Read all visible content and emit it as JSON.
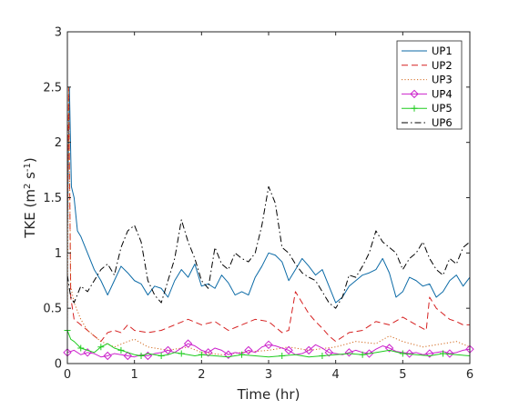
{
  "chart_data": {
    "type": "line",
    "xlabel": "Time (hr)",
    "ylabel": {
      "base": "TKE (m",
      "sup1": "2",
      "mid": " s",
      "sup2": "-1",
      "end": ")"
    },
    "xlim": [
      0,
      6
    ],
    "ylim": [
      0,
      3
    ],
    "xticks": [
      "0",
      "1",
      "2",
      "3",
      "4",
      "5",
      "6"
    ],
    "yticks": [
      "0",
      "0.5",
      "1",
      "1.5",
      "2",
      "2.5",
      "3"
    ],
    "grid": false,
    "legend_position": "top-right",
    "series": [
      {
        "name": "UP1",
        "color": "#0b6aa6",
        "style": "solid",
        "marker": "none",
        "x": [
          0,
          0.03,
          0.06,
          0.1,
          0.15,
          0.2,
          0.3,
          0.4,
          0.5,
          0.6,
          0.7,
          0.8,
          0.9,
          1.0,
          1.1,
          1.2,
          1.3,
          1.4,
          1.5,
          1.6,
          1.7,
          1.8,
          1.9,
          2.0,
          2.1,
          2.2,
          2.3,
          2.4,
          2.5,
          2.6,
          2.7,
          2.8,
          2.9,
          3.0,
          3.1,
          3.2,
          3.3,
          3.4,
          3.5,
          3.6,
          3.7,
          3.8,
          3.9,
          4.0,
          4.1,
          4.2,
          4.3,
          4.4,
          4.5,
          4.6,
          4.7,
          4.8,
          4.9,
          5.0,
          5.1,
          5.2,
          5.3,
          5.4,
          5.5,
          5.6,
          5.7,
          5.8,
          5.9,
          6.0
        ],
        "y": [
          1.2,
          2.5,
          1.6,
          1.5,
          1.2,
          1.15,
          1.0,
          0.85,
          0.75,
          0.62,
          0.75,
          0.88,
          0.82,
          0.75,
          0.72,
          0.62,
          0.7,
          0.68,
          0.6,
          0.75,
          0.85,
          0.78,
          0.9,
          0.7,
          0.72,
          0.68,
          0.8,
          0.73,
          0.62,
          0.65,
          0.62,
          0.78,
          0.88,
          1.0,
          0.98,
          0.92,
          0.75,
          0.85,
          0.95,
          0.88,
          0.8,
          0.85,
          0.7,
          0.55,
          0.6,
          0.7,
          0.75,
          0.8,
          0.82,
          0.85,
          0.95,
          0.82,
          0.6,
          0.65,
          0.78,
          0.75,
          0.7,
          0.72,
          0.6,
          0.65,
          0.75,
          0.8,
          0.7,
          0.78
        ]
      },
      {
        "name": "UP2",
        "color": "#d62020",
        "style": "dashed",
        "marker": "none",
        "x": [
          0,
          0.02,
          0.05,
          0.1,
          0.2,
          0.3,
          0.4,
          0.5,
          0.6,
          0.7,
          0.8,
          0.9,
          1.0,
          1.2,
          1.4,
          1.6,
          1.8,
          2.0,
          2.2,
          2.4,
          2.6,
          2.8,
          3.0,
          3.2,
          3.3,
          3.4,
          3.5,
          3.6,
          3.7,
          3.8,
          3.9,
          4.0,
          4.2,
          4.4,
          4.6,
          4.8,
          5.0,
          5.2,
          5.35,
          5.4,
          5.5,
          5.6,
          5.7,
          5.8,
          5.9,
          6.0
        ],
        "y": [
          1.2,
          2.5,
          0.6,
          0.4,
          0.35,
          0.3,
          0.25,
          0.2,
          0.28,
          0.3,
          0.28,
          0.35,
          0.3,
          0.28,
          0.3,
          0.35,
          0.4,
          0.35,
          0.38,
          0.3,
          0.35,
          0.4,
          0.38,
          0.28,
          0.3,
          0.65,
          0.55,
          0.45,
          0.38,
          0.32,
          0.25,
          0.2,
          0.28,
          0.3,
          0.38,
          0.35,
          0.42,
          0.35,
          0.3,
          0.6,
          0.5,
          0.45,
          0.4,
          0.38,
          0.35,
          0.35
        ]
      },
      {
        "name": "UP3",
        "color": "#d2691e",
        "style": "dotted",
        "marker": "none",
        "x": [
          0,
          0.02,
          0.05,
          0.1,
          0.2,
          0.3,
          0.4,
          0.5,
          0.7,
          0.9,
          1.0,
          1.2,
          1.5,
          1.8,
          2.0,
          2.3,
          2.6,
          3.0,
          3.3,
          3.6,
          4.0,
          4.3,
          4.6,
          4.8,
          5.0,
          5.3,
          5.6,
          5.8,
          6.0
        ],
        "y": [
          0.3,
          2.5,
          0.7,
          0.55,
          0.4,
          0.3,
          0.25,
          0.2,
          0.15,
          0.2,
          0.22,
          0.15,
          0.12,
          0.15,
          0.1,
          0.08,
          0.1,
          0.12,
          0.15,
          0.12,
          0.15,
          0.2,
          0.18,
          0.25,
          0.2,
          0.15,
          0.18,
          0.2,
          0.15
        ]
      },
      {
        "name": "UP4",
        "color": "#cc22cc",
        "style": "solid",
        "marker": "diamond",
        "x": [
          0,
          0.1,
          0.2,
          0.3,
          0.4,
          0.5,
          0.6,
          0.7,
          0.8,
          0.9,
          1.0,
          1.1,
          1.2,
          1.3,
          1.4,
          1.5,
          1.6,
          1.7,
          1.8,
          1.9,
          2.0,
          2.1,
          2.2,
          2.3,
          2.4,
          2.5,
          2.6,
          2.7,
          2.8,
          2.9,
          3.0,
          3.1,
          3.2,
          3.3,
          3.4,
          3.5,
          3.6,
          3.7,
          3.8,
          3.9,
          4.0,
          4.1,
          4.2,
          4.3,
          4.4,
          4.5,
          4.6,
          4.7,
          4.8,
          4.9,
          5.0,
          5.1,
          5.2,
          5.3,
          5.4,
          5.5,
          5.6,
          5.7,
          5.8,
          5.9,
          6.0
        ],
        "y": [
          0.1,
          0.12,
          0.08,
          0.1,
          0.09,
          0.06,
          0.07,
          0.09,
          0.08,
          0.07,
          0.06,
          0.08,
          0.07,
          0.09,
          0.1,
          0.12,
          0.1,
          0.14,
          0.18,
          0.16,
          0.12,
          0.1,
          0.14,
          0.12,
          0.08,
          0.1,
          0.09,
          0.12,
          0.1,
          0.15,
          0.17,
          0.16,
          0.14,
          0.12,
          0.08,
          0.09,
          0.12,
          0.17,
          0.14,
          0.1,
          0.09,
          0.08,
          0.1,
          0.12,
          0.1,
          0.09,
          0.13,
          0.16,
          0.14,
          0.11,
          0.1,
          0.09,
          0.1,
          0.08,
          0.09,
          0.1,
          0.11,
          0.09,
          0.1,
          0.12,
          0.13
        ]
      },
      {
        "name": "UP5",
        "color": "#1fcc1f",
        "style": "solid",
        "marker": "plus",
        "x": [
          0,
          0.05,
          0.1,
          0.2,
          0.3,
          0.4,
          0.5,
          0.6,
          0.7,
          0.8,
          0.9,
          1.0,
          1.1,
          1.2,
          1.3,
          1.4,
          1.5,
          1.6,
          1.7,
          1.8,
          1.9,
          2.0,
          2.2,
          2.4,
          2.6,
          2.8,
          3.0,
          3.2,
          3.4,
          3.6,
          3.8,
          4.0,
          4.2,
          4.4,
          4.6,
          4.8,
          5.0,
          5.2,
          5.4,
          5.6,
          5.8,
          6.0
        ],
        "y": [
          0.3,
          0.22,
          0.2,
          0.14,
          0.12,
          0.1,
          0.15,
          0.18,
          0.14,
          0.12,
          0.1,
          0.08,
          0.07,
          0.09,
          0.08,
          0.07,
          0.08,
          0.1,
          0.09,
          0.08,
          0.07,
          0.08,
          0.07,
          0.06,
          0.08,
          0.07,
          0.06,
          0.07,
          0.08,
          0.06,
          0.07,
          0.08,
          0.09,
          0.08,
          0.1,
          0.12,
          0.09,
          0.08,
          0.07,
          0.09,
          0.08,
          0.07
        ]
      },
      {
        "name": "UP6",
        "color": "#000000",
        "style": "dashdot",
        "marker": "none",
        "x": [
          0,
          0.05,
          0.1,
          0.2,
          0.3,
          0.4,
          0.5,
          0.6,
          0.7,
          0.8,
          0.9,
          1.0,
          1.1,
          1.2,
          1.3,
          1.4,
          1.5,
          1.6,
          1.7,
          1.8,
          1.9,
          2.0,
          2.1,
          2.2,
          2.3,
          2.4,
          2.5,
          2.6,
          2.7,
          2.8,
          2.9,
          3.0,
          3.1,
          3.2,
          3.3,
          3.4,
          3.5,
          3.6,
          3.7,
          3.8,
          3.9,
          4.0,
          4.1,
          4.2,
          4.3,
          4.4,
          4.5,
          4.6,
          4.7,
          4.8,
          4.9,
          5.0,
          5.1,
          5.2,
          5.3,
          5.4,
          5.5,
          5.6,
          5.7,
          5.8,
          5.9,
          6.0
        ],
        "y": [
          0.8,
          0.6,
          0.55,
          0.7,
          0.65,
          0.75,
          0.85,
          0.9,
          0.8,
          1.05,
          1.2,
          1.25,
          1.1,
          0.75,
          0.62,
          0.55,
          0.75,
          0.95,
          1.3,
          1.1,
          0.95,
          0.75,
          0.68,
          1.05,
          0.9,
          0.85,
          1.0,
          0.95,
          0.92,
          1.0,
          1.25,
          1.6,
          1.45,
          1.05,
          1.0,
          0.9,
          0.82,
          0.78,
          0.75,
          0.65,
          0.55,
          0.5,
          0.6,
          0.8,
          0.78,
          0.88,
          1.0,
          1.2,
          1.1,
          1.05,
          1.0,
          0.85,
          0.95,
          1.0,
          1.1,
          0.95,
          0.85,
          0.8,
          0.95,
          0.9,
          1.05,
          1.1
        ]
      }
    ]
  }
}
